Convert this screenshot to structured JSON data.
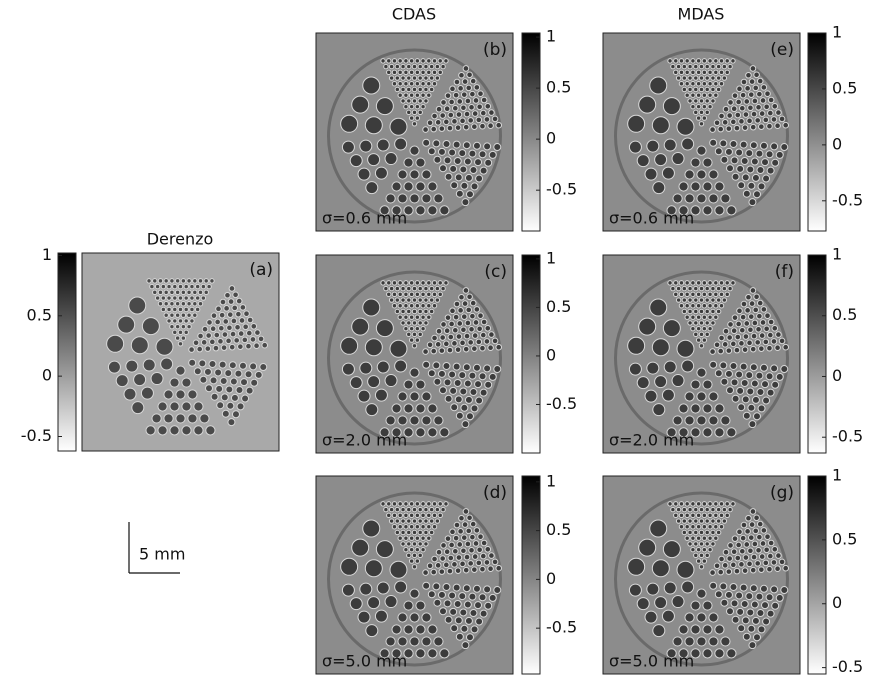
{
  "columns": [
    {
      "title": "Derenzo"
    },
    {
      "title": "CDAS"
    },
    {
      "title": "MDAS"
    }
  ],
  "panels": [
    {
      "label": "(a)",
      "colorbar": {
        "lim": [
          -0.62,
          1.02
        ],
        "ticks": [
          1,
          0.5,
          0,
          -0.5
        ]
      }
    },
    {
      "label": "(b)",
      "sigma": "σ=0.6 mm",
      "colorbar": {
        "lim": [
          -0.9,
          1.04
        ],
        "ticks": [
          1,
          0.5,
          0,
          -0.5
        ]
      }
    },
    {
      "label": "(c)",
      "sigma": "σ=2.0 mm",
      "colorbar": {
        "lim": [
          -1.0,
          1.04
        ],
        "ticks": [
          1,
          0.5,
          0,
          -0.5
        ]
      }
    },
    {
      "label": "(d)",
      "sigma": "σ=5.0 mm",
      "colorbar": {
        "lim": [
          -0.97,
          1.06
        ],
        "ticks": [
          1,
          0.5,
          0,
          -0.5
        ]
      }
    },
    {
      "label": "(e)",
      "sigma": "σ=0.6 mm",
      "colorbar": {
        "lim": [
          -0.77,
          1.0
        ],
        "ticks": [
          1,
          0.5,
          0,
          -0.5
        ]
      }
    },
    {
      "label": "(f)",
      "sigma": "σ=2.0 mm",
      "colorbar": {
        "lim": [
          -0.63,
          1.0
        ],
        "ticks": [
          1,
          0.5,
          0,
          -0.5
        ]
      }
    },
    {
      "label": "(g)",
      "sigma": "σ=5.0 mm",
      "colorbar": {
        "lim": [
          -0.55,
          1.0
        ],
        "ticks": [
          1,
          0.5,
          0,
          -0.5
        ]
      }
    }
  ],
  "scale_bar": "5 mm"
}
